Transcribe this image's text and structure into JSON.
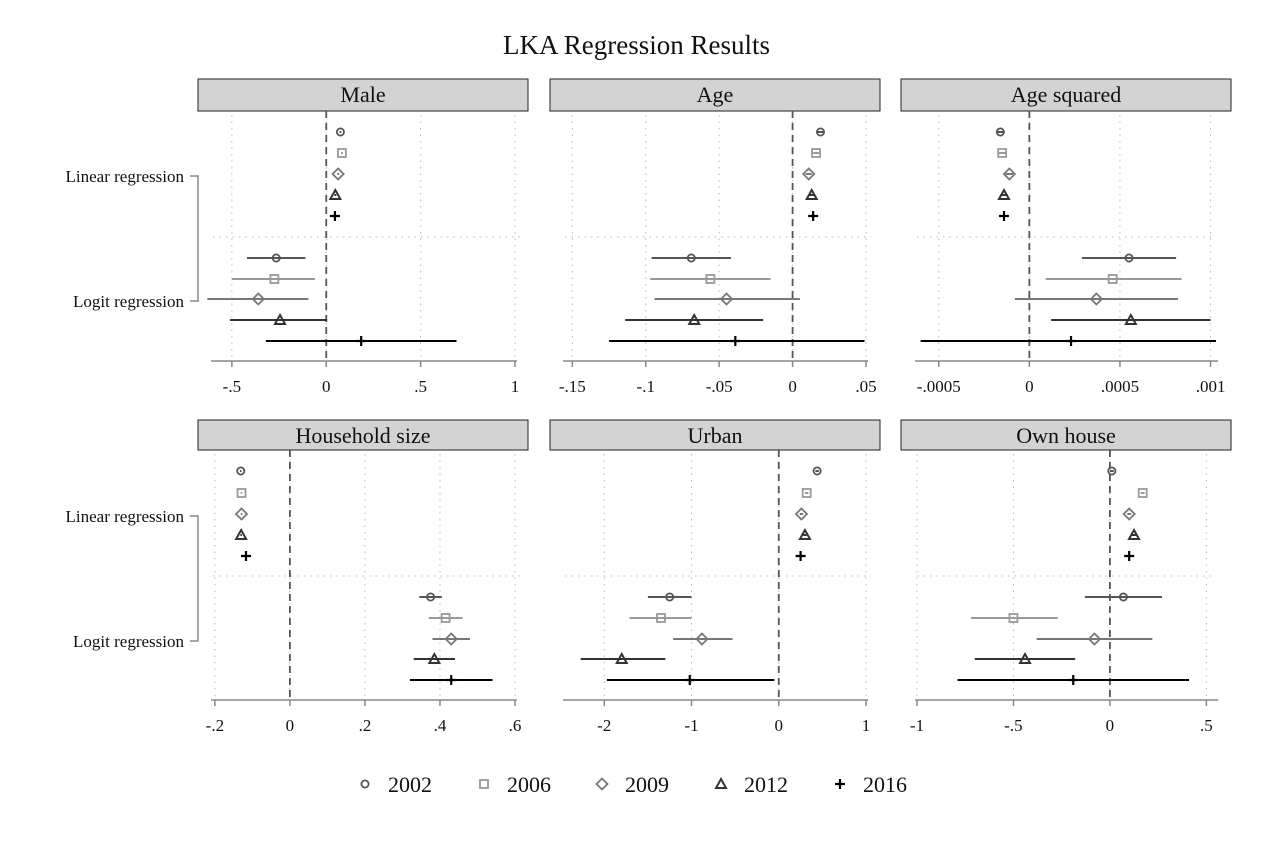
{
  "title": "LKA Regression Results",
  "colors": {
    "2002": "#555555",
    "2006": "#999999",
    "2009": "#777777",
    "2012": "#333333",
    "2016": "#000000",
    "strip_bg": "#d3d3d3",
    "zero_line": "#555555",
    "grid": "#bbbbbb",
    "axis": "#888888"
  },
  "chart_data": [
    {
      "type": "dot-whisker",
      "title": "Male",
      "xlim": [
        -0.6,
        1.0
      ],
      "ticks": [
        -0.5,
        0,
        0.5,
        1
      ],
      "tick_labels": [
        "-.5",
        "0",
        ".5",
        "1"
      ],
      "groups": [
        "Linear regression",
        "Logit regression"
      ],
      "series": [
        {
          "name": "2002",
          "symbol": "circle",
          "linear": {
            "est": 0.075,
            "lo": 0.07,
            "hi": 0.08
          },
          "logit": {
            "est": -0.265,
            "lo": -0.42,
            "hi": -0.11
          }
        },
        {
          "name": "2006",
          "symbol": "square",
          "linear": {
            "est": 0.083,
            "lo": 0.078,
            "hi": 0.088
          },
          "logit": {
            "est": -0.275,
            "lo": -0.5,
            "hi": -0.06
          }
        },
        {
          "name": "2009",
          "symbol": "diamond",
          "linear": {
            "est": 0.063,
            "lo": 0.058,
            "hi": 0.068
          },
          "logit": {
            "est": -0.36,
            "lo": -0.63,
            "hi": -0.095
          }
        },
        {
          "name": "2012",
          "symbol": "triangle",
          "linear": {
            "est": 0.048,
            "lo": 0.043,
            "hi": 0.053
          },
          "logit": {
            "est": -0.245,
            "lo": -0.51,
            "hi": 0.005
          }
        },
        {
          "name": "2016",
          "symbol": "plus",
          "linear": {
            "est": 0.046,
            "lo": 0.041,
            "hi": 0.051
          },
          "logit": {
            "est": 0.185,
            "lo": -0.32,
            "hi": 0.69
          }
        }
      ]
    },
    {
      "type": "dot-whisker",
      "title": "Age",
      "xlim": [
        -0.155,
        0.05
      ],
      "ticks": [
        -0.15,
        -0.1,
        -0.05,
        0,
        0.05
      ],
      "tick_labels": [
        "-.15",
        "-.1",
        "-.05",
        "0",
        ".05"
      ],
      "groups": [
        "Linear regression",
        "Logit regression"
      ],
      "series": [
        {
          "name": "2002",
          "symbol": "circle",
          "linear": {
            "est": 0.019,
            "lo": 0.017,
            "hi": 0.021
          },
          "logit": {
            "est": -0.069,
            "lo": -0.096,
            "hi": -0.042
          }
        },
        {
          "name": "2006",
          "symbol": "square",
          "linear": {
            "est": 0.016,
            "lo": 0.014,
            "hi": 0.018
          },
          "logit": {
            "est": -0.056,
            "lo": -0.097,
            "hi": -0.015
          }
        },
        {
          "name": "2009",
          "symbol": "diamond",
          "linear": {
            "est": 0.011,
            "lo": 0.009,
            "hi": 0.013
          },
          "logit": {
            "est": -0.045,
            "lo": -0.094,
            "hi": 0.005
          }
        },
        {
          "name": "2012",
          "symbol": "triangle",
          "linear": {
            "est": 0.013,
            "lo": 0.011,
            "hi": 0.015
          },
          "logit": {
            "est": -0.067,
            "lo": -0.114,
            "hi": -0.02
          }
        },
        {
          "name": "2016",
          "symbol": "plus",
          "linear": {
            "est": 0.014,
            "lo": 0.012,
            "hi": 0.016
          },
          "logit": {
            "est": -0.039,
            "lo": -0.125,
            "hi": 0.049
          }
        }
      ]
    },
    {
      "type": "dot-whisker",
      "title": "Age squared",
      "xlim": [
        -0.00062,
        0.00103
      ],
      "ticks": [
        -0.0005,
        0,
        0.0005,
        0.001
      ],
      "tick_labels": [
        "-.0005",
        "0",
        ".0005",
        ".001"
      ],
      "groups": [
        "Linear regression",
        "Logit regression"
      ],
      "series": [
        {
          "name": "2002",
          "symbol": "circle",
          "linear": {
            "est": -0.00016,
            "lo": -0.00018,
            "hi": -0.00014
          },
          "logit": {
            "est": 0.00055,
            "lo": 0.00029,
            "hi": 0.00081
          }
        },
        {
          "name": "2006",
          "symbol": "square",
          "linear": {
            "est": -0.00015,
            "lo": -0.00017,
            "hi": -0.00013
          },
          "logit": {
            "est": 0.00046,
            "lo": 9e-05,
            "hi": 0.00084
          }
        },
        {
          "name": "2009",
          "symbol": "diamond",
          "linear": {
            "est": -0.00011,
            "lo": -0.00013,
            "hi": -9e-05
          },
          "logit": {
            "est": 0.00037,
            "lo": -8e-05,
            "hi": 0.00082
          }
        },
        {
          "name": "2012",
          "symbol": "triangle",
          "linear": {
            "est": -0.00014,
            "lo": -0.00016,
            "hi": -0.00012
          },
          "logit": {
            "est": 0.00056,
            "lo": 0.00012,
            "hi": 0.001
          }
        },
        {
          "name": "2016",
          "symbol": "plus",
          "linear": {
            "est": -0.00014,
            "lo": -0.00016,
            "hi": -0.00012
          },
          "logit": {
            "est": 0.00023,
            "lo": -0.0006,
            "hi": 0.00103
          }
        }
      ]
    },
    {
      "type": "dot-whisker",
      "title": "Household size",
      "xlim": [
        -0.205,
        0.6
      ],
      "ticks": [
        -0.2,
        0,
        0.2,
        0.4,
        0.6
      ],
      "tick_labels": [
        "-.2",
        "0",
        ".2",
        ".4",
        ".6"
      ],
      "groups": [
        "Linear regression",
        "Logit regression"
      ],
      "series": [
        {
          "name": "2002",
          "symbol": "circle",
          "linear": {
            "est": -0.131,
            "lo": -0.133,
            "hi": -0.129
          },
          "logit": {
            "est": 0.375,
            "lo": 0.345,
            "hi": 0.405
          }
        },
        {
          "name": "2006",
          "symbol": "square",
          "linear": {
            "est": -0.129,
            "lo": -0.131,
            "hi": -0.127
          },
          "logit": {
            "est": 0.415,
            "lo": 0.37,
            "hi": 0.46
          }
        },
        {
          "name": "2009",
          "symbol": "diamond",
          "linear": {
            "est": -0.129,
            "lo": -0.131,
            "hi": -0.127
          },
          "logit": {
            "est": 0.43,
            "lo": 0.38,
            "hi": 0.48
          }
        },
        {
          "name": "2012",
          "symbol": "triangle",
          "linear": {
            "est": -0.13,
            "lo": -0.132,
            "hi": -0.128
          },
          "logit": {
            "est": 0.385,
            "lo": 0.33,
            "hi": 0.44
          }
        },
        {
          "name": "2016",
          "symbol": "plus",
          "linear": {
            "est": -0.117,
            "lo": -0.119,
            "hi": -0.115
          },
          "logit": {
            "est": 0.43,
            "lo": 0.32,
            "hi": 0.54
          }
        }
      ]
    },
    {
      "type": "dot-whisker",
      "title": "Urban",
      "xlim": [
        -2.45,
        1.0
      ],
      "ticks": [
        -2,
        -1,
        0,
        1
      ],
      "tick_labels": [
        "-2",
        "-1",
        "0",
        "1"
      ],
      "groups": [
        "Linear regression",
        "Logit regression"
      ],
      "series": [
        {
          "name": "2002",
          "symbol": "circle",
          "linear": {
            "est": 0.44,
            "lo": 0.42,
            "hi": 0.46
          },
          "logit": {
            "est": -1.25,
            "lo": -1.5,
            "hi": -1.0
          }
        },
        {
          "name": "2006",
          "symbol": "square",
          "linear": {
            "est": 0.32,
            "lo": 0.3,
            "hi": 0.34
          },
          "logit": {
            "est": -1.35,
            "lo": -1.71,
            "hi": -1.0
          }
        },
        {
          "name": "2009",
          "symbol": "diamond",
          "linear": {
            "est": 0.26,
            "lo": 0.24,
            "hi": 0.28
          },
          "logit": {
            "est": -0.88,
            "lo": -1.21,
            "hi": -0.53
          }
        },
        {
          "name": "2012",
          "symbol": "triangle",
          "linear": {
            "est": 0.3,
            "lo": 0.28,
            "hi": 0.32
          },
          "logit": {
            "est": -1.8,
            "lo": -2.27,
            "hi": -1.3
          }
        },
        {
          "name": "2016",
          "symbol": "plus",
          "linear": {
            "est": 0.25,
            "lo": 0.23,
            "hi": 0.27
          },
          "logit": {
            "est": -1.02,
            "lo": -1.97,
            "hi": -0.05
          }
        }
      ]
    },
    {
      "type": "dot-whisker",
      "title": "Own house",
      "xlim": [
        -1.0,
        0.55
      ],
      "ticks": [
        -1,
        -0.5,
        0,
        0.5
      ],
      "tick_labels": [
        "-1",
        "-.5",
        "0",
        ".5"
      ],
      "groups": [
        "Linear regression",
        "Logit regression"
      ],
      "series": [
        {
          "name": "2002",
          "symbol": "circle",
          "linear": {
            "est": 0.01,
            "lo": 0.0,
            "hi": 0.02
          },
          "logit": {
            "est": 0.07,
            "lo": -0.13,
            "hi": 0.27
          }
        },
        {
          "name": "2006",
          "symbol": "square",
          "linear": {
            "est": 0.17,
            "lo": 0.16,
            "hi": 0.18
          },
          "logit": {
            "est": -0.5,
            "lo": -0.72,
            "hi": -0.27
          }
        },
        {
          "name": "2009",
          "symbol": "diamond",
          "linear": {
            "est": 0.1,
            "lo": 0.09,
            "hi": 0.11
          },
          "logit": {
            "est": -0.08,
            "lo": -0.38,
            "hi": 0.22
          }
        },
        {
          "name": "2012",
          "symbol": "triangle",
          "linear": {
            "est": 0.125,
            "lo": 0.115,
            "hi": 0.135
          },
          "logit": {
            "est": -0.44,
            "lo": -0.7,
            "hi": -0.18
          }
        },
        {
          "name": "2016",
          "symbol": "plus",
          "linear": {
            "est": 0.1,
            "lo": 0.09,
            "hi": 0.11
          },
          "logit": {
            "est": -0.19,
            "lo": -0.79,
            "hi": 0.41
          }
        }
      ]
    }
  ],
  "y_labels": [
    "Linear regression",
    "Logit regression"
  ],
  "legend": [
    {
      "label": "2002",
      "symbol": "circle"
    },
    {
      "label": "2006",
      "symbol": "square"
    },
    {
      "label": "2009",
      "symbol": "diamond"
    },
    {
      "label": "2012",
      "symbol": "triangle"
    },
    {
      "label": "2016",
      "symbol": "plus"
    }
  ]
}
